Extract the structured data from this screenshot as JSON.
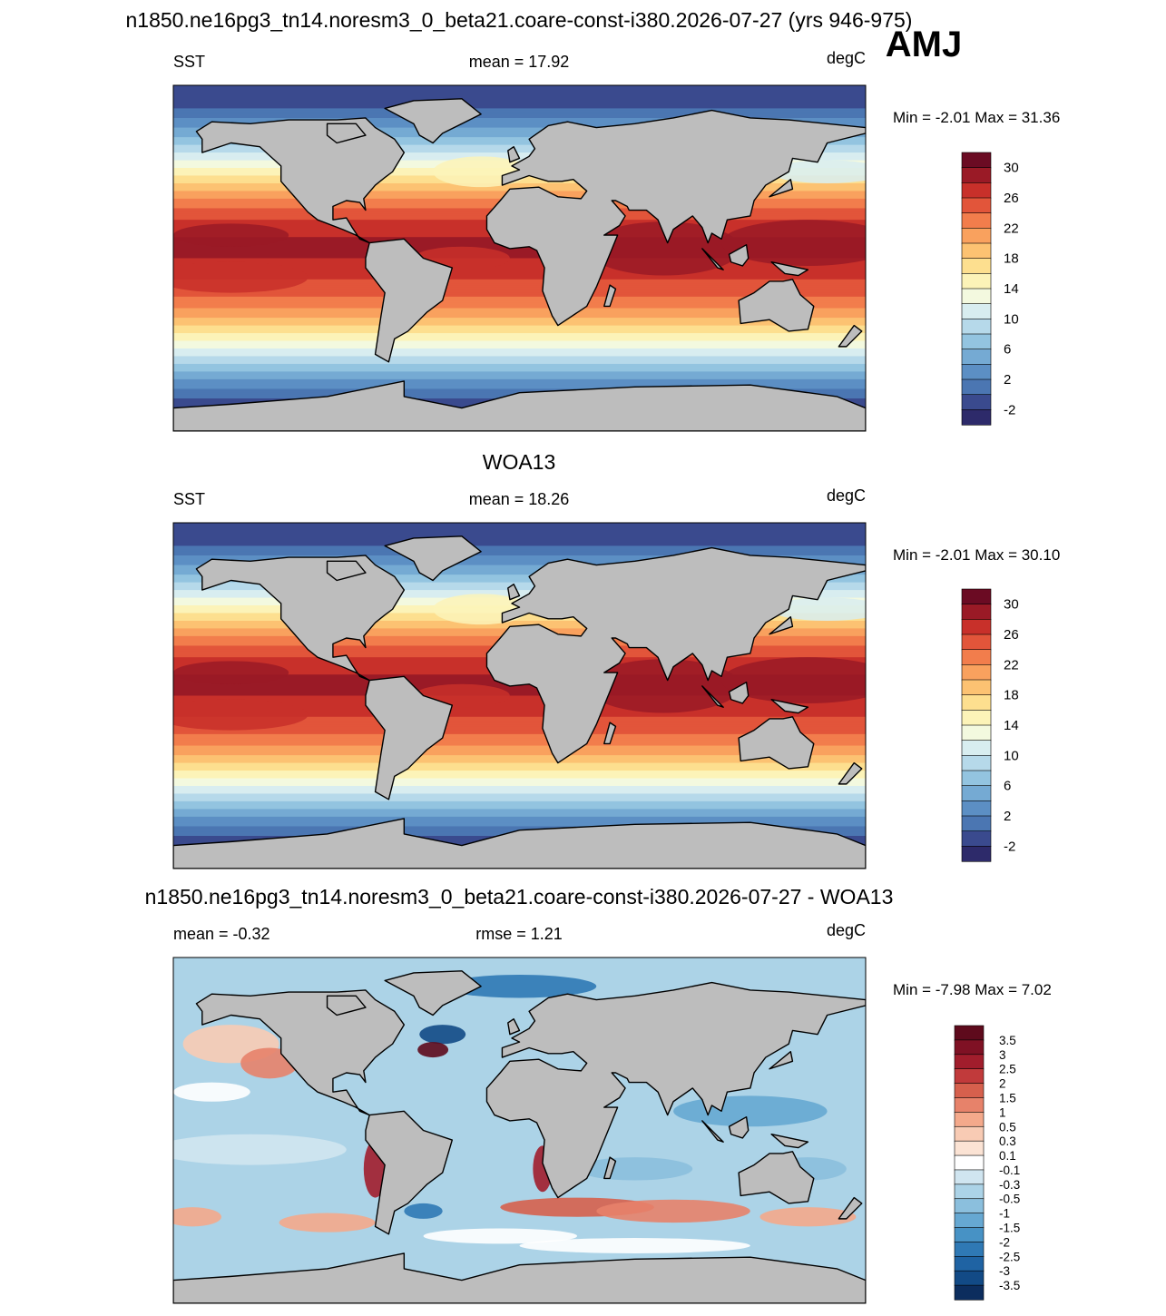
{
  "title": "n1850.ne16pg3_tn14.noresm3_0_beta21.coare-const-i380.2026-07-27 (yrs 946-975)",
  "season": "AMJ",
  "panels": [
    {
      "left": "SST",
      "center": "mean =  17.92",
      "right": "degC",
      "minmax": "Min =  -2.01 Max =  31.36",
      "colorbar": {
        "labels": [
          "30",
          "26",
          "22",
          "18",
          "14",
          "10",
          "6",
          "2",
          "-2"
        ],
        "colors": [
          "#6b0b23",
          "#9a1a26",
          "#c8302a",
          "#e2553a",
          "#f27d4c",
          "#f9a15e",
          "#fcc272",
          "#fddf8f",
          "#fcf3b8",
          "#f3f9df",
          "#d8edf0",
          "#b6d9ea",
          "#93c4e0",
          "#75aad3",
          "#5c8fc4",
          "#4b76b2",
          "#3a4a8e",
          "#2d2a6a"
        ]
      }
    },
    {
      "title": "WOA13",
      "left": "SST",
      "center": "mean =  18.26",
      "right": "degC",
      "minmax": "Min =  -2.01 Max =  30.10",
      "colorbar": {
        "labels": [
          "30",
          "26",
          "22",
          "18",
          "14",
          "10",
          "6",
          "2",
          "-2"
        ],
        "colors": [
          "#6b0b23",
          "#9a1a26",
          "#c8302a",
          "#e2553a",
          "#f27d4c",
          "#f9a15e",
          "#fcc272",
          "#fddf8f",
          "#fcf3b8",
          "#f3f9df",
          "#d8edf0",
          "#b6d9ea",
          "#93c4e0",
          "#75aad3",
          "#5c8fc4",
          "#4b76b2",
          "#3a4a8e",
          "#2d2a6a"
        ]
      }
    },
    {
      "title": "n1850.ne16pg3_tn14.noresm3_0_beta21.coare-const-i380.2026-07-27 - WOA13",
      "left": "mean =  -0.32",
      "center": "rmse =   1.21",
      "right": "degC",
      "minmax": "Min =  -7.98 Max =   7.02",
      "colorbar": {
        "labels": [
          "3.5",
          "3",
          "2.5",
          "2",
          "1.5",
          "1",
          "0.5",
          "0.3",
          "0.1",
          "-0.1",
          "-0.3",
          "-0.5",
          "-1",
          "-1.5",
          "-2",
          "-2.5",
          "-3",
          "-3.5"
        ],
        "colors": [
          "#5e0a1c",
          "#7f1124",
          "#a11d2c",
          "#c13a3b",
          "#d6604d",
          "#e7826a",
          "#f4a98b",
          "#f8cbb4",
          "#fbe3d4",
          "#ffffff",
          "#d0e5f0",
          "#acd3e7",
          "#8bbfdd",
          "#66a8d2",
          "#4792c5",
          "#2f79b5",
          "#1f63a3",
          "#124a86",
          "#0c2d5e"
        ]
      }
    }
  ]
}
